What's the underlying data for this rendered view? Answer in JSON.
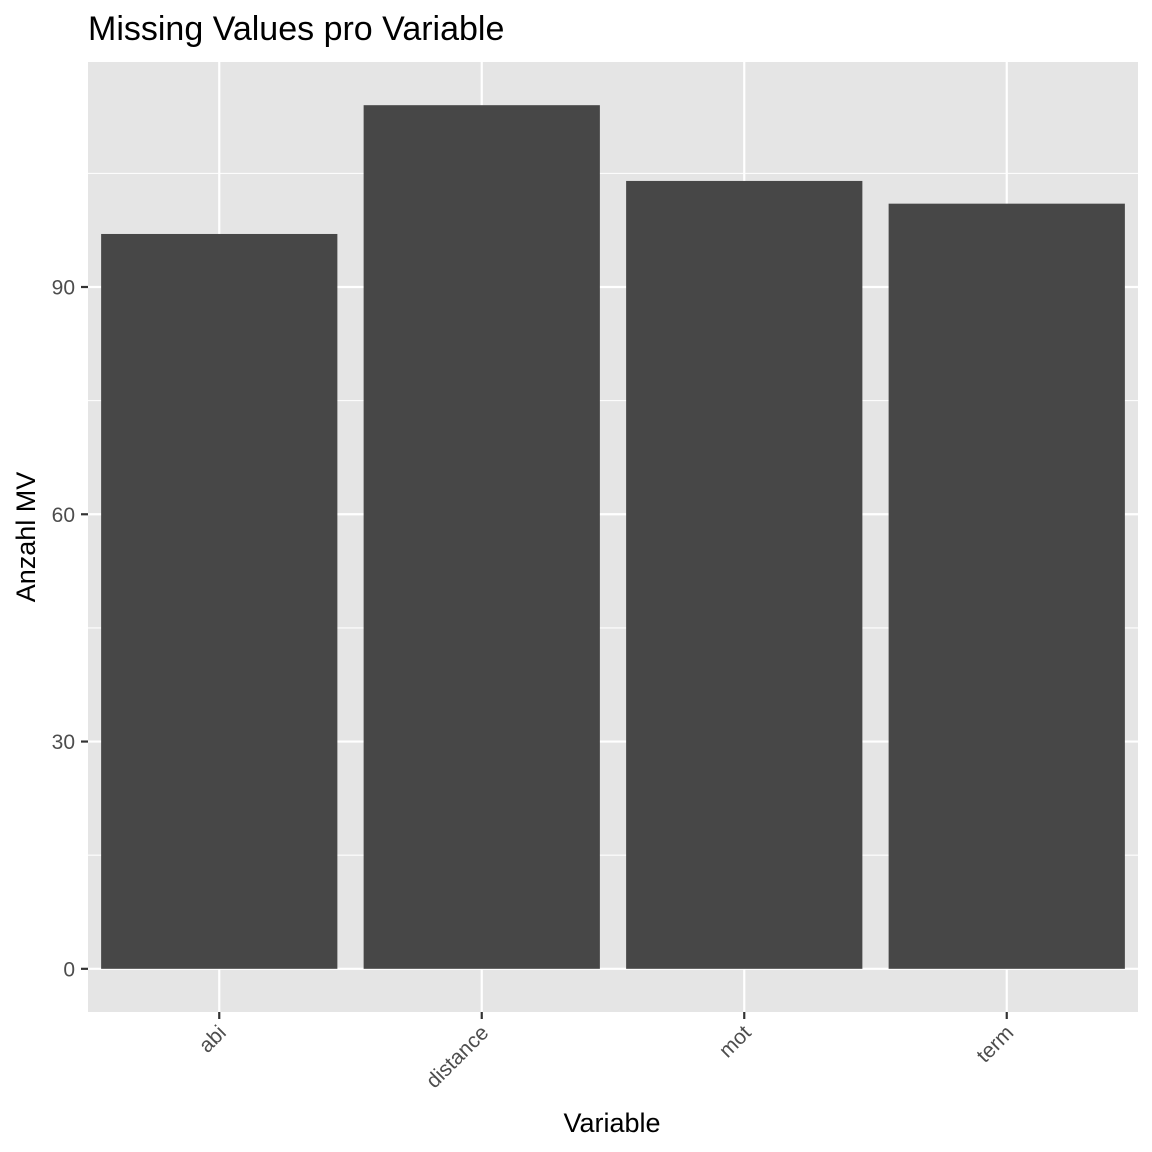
{
  "chart_data": {
    "type": "bar",
    "title": "Missing Values pro Variable",
    "xlabel": "Variable",
    "ylabel": "Anzahl MV",
    "categories": [
      "abi",
      "distance",
      "mot",
      "term"
    ],
    "values": [
      97,
      114,
      104,
      101
    ],
    "ylim": [
      -5.7,
      119.7
    ],
    "yticks": [
      0,
      30,
      60,
      90
    ],
    "grid": true,
    "legend": "none",
    "x_tick_rotation_deg": 45,
    "colors": {
      "bar": "#474747",
      "panel": "#e5e5e5",
      "grid": "#ffffff",
      "tick_text": "#4d4d4d",
      "tick_mark": "#333333",
      "text": "#000000"
    }
  }
}
